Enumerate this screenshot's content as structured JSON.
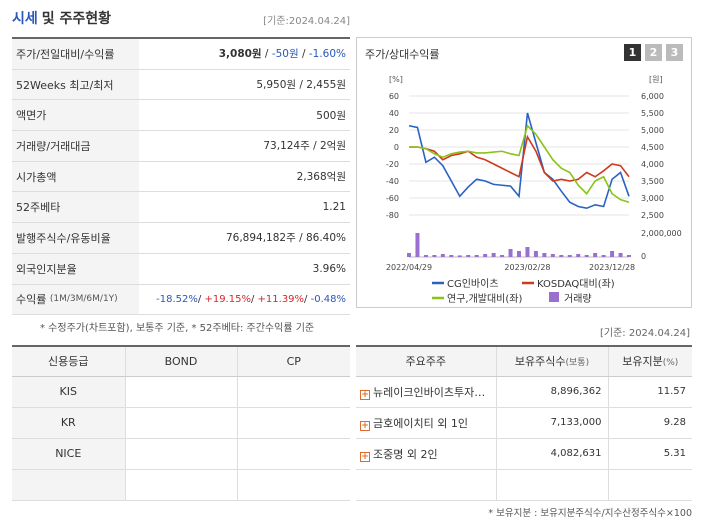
{
  "header": {
    "title_a": "시세",
    "title_b": "및 주주현황",
    "date": "[기준:2024.04.24]"
  },
  "market": {
    "price_label": "주가/전일대비/수익률",
    "price": "3,080원",
    "sep1": " / ",
    "change": "-50원",
    "sep2": " / ",
    "change_pct": "-1.60%",
    "wk52_label": "52Weeks 최고/최저",
    "wk52": "5,950원 / 2,455원",
    "par_label": "액면가",
    "par": "500원",
    "volume_label": "거래량/거래대금",
    "volume": "73,124주 / 2억원",
    "mcap_label": "시가총액",
    "mcap": "2,368억원",
    "beta_label": "52주베타",
    "beta": "1.21",
    "shares_label": "발행주식수/유동비율",
    "shares": "76,894,182주 / 86.40%",
    "foreign_label": "외국인지분율",
    "foreign": "3.96%",
    "ret_label": "수익률",
    "ret_sub": "(1M/3M/6M/1Y)",
    "ret_1m": "-18.52%",
    "ret_3m": "+19.15%",
    "ret_6m": "+11.39%",
    "ret_1y": "-0.48%",
    "ret_sep": "/ "
  },
  "note_left": "* 수정주가(차트포함), 보통주 기준, * 52주베타: 주간수익률 기준",
  "chart_panel": {
    "title": "주가/상대수익률",
    "tabs": [
      "1",
      "2",
      "3"
    ]
  },
  "chart_data": {
    "type": "line",
    "y_left_unit": "[%]",
    "y_right_unit": "[원]",
    "y_left_ticks": [
      "60",
      "40",
      "20",
      "0",
      "-20",
      "-40",
      "-60",
      "-80"
    ],
    "y_right_ticks": [
      "6,000",
      "5,500",
      "5,000",
      "4,500",
      "4,000",
      "3,500",
      "3,000",
      "2,500"
    ],
    "vol_tick": "2,000,000",
    "vol_zero": "0",
    "x_ticks": [
      "2022/04/29",
      "2023/02/28",
      "2023/12/28"
    ],
    "ylim": [
      -80,
      60
    ],
    "series": [
      {
        "name": "CG인바이츠",
        "color": "#2a62c4",
        "values": [
          25,
          23,
          -18,
          -12,
          -22,
          -40,
          -58,
          -47,
          -38,
          -40,
          -44,
          -45,
          -46,
          -58,
          40,
          5,
          -30,
          -38,
          -52,
          -65,
          -70,
          -72,
          -68,
          -70,
          -38,
          -30,
          -58
        ]
      },
      {
        "name": "KOSDAQ대비(좌)",
        "color": "#d03a1c",
        "values": [
          0,
          0,
          -2,
          -5,
          -15,
          -10,
          -8,
          -5,
          -12,
          -15,
          -20,
          -25,
          -30,
          -35,
          12,
          -5,
          -30,
          -40,
          -38,
          -40,
          -38,
          -30,
          -35,
          -28,
          -20,
          -22,
          -35
        ]
      },
      {
        "name": "연구,개발대비(좌)",
        "color": "#8cc21a",
        "values": [
          0,
          0,
          -2,
          -8,
          -12,
          -8,
          -6,
          -5,
          -7,
          -7,
          -6,
          -5,
          -8,
          -10,
          25,
          15,
          0,
          -15,
          -25,
          -30,
          -45,
          -55,
          -40,
          -35,
          -55,
          -62,
          -65
        ]
      }
    ],
    "volume_series": {
      "name": "거래량",
      "color": "#9a6fd0",
      "values": [
        0.2,
        1.2,
        0.1,
        0.1,
        0.15,
        0.1,
        0.08,
        0.1,
        0.1,
        0.15,
        0.2,
        0.1,
        0.4,
        0.3,
        0.5,
        0.3,
        0.2,
        0.15,
        0.1,
        0.1,
        0.15,
        0.1,
        0.2,
        0.1,
        0.3,
        0.2,
        0.1
      ]
    },
    "legend": "bottom"
  },
  "note_right": "[기준: 2024.04.24]",
  "credit": {
    "headers": [
      "신용등급",
      "BOND",
      "CP"
    ],
    "rows": [
      [
        "KIS",
        "",
        ""
      ],
      [
        "KR",
        "",
        ""
      ],
      [
        "NICE",
        "",
        ""
      ],
      [
        "",
        "",
        ""
      ]
    ]
  },
  "holders": {
    "headers": [
      "주요주주",
      "보유주식수",
      "(보통)",
      "보유지분",
      "(%)"
    ],
    "rows": [
      {
        "name": "뉴레이크인바이츠투자…",
        "shares": "8,896,362",
        "pct": "11.57"
      },
      {
        "name": "금호에이치티 외 1인",
        "shares": "7,133,000",
        "pct": "9.28"
      },
      {
        "name": "조중명 외 2인",
        "shares": "4,082,631",
        "pct": "5.31"
      }
    ],
    "note": "* 보유지분 : 보유지분주식수/지수산정주식수×100"
  }
}
